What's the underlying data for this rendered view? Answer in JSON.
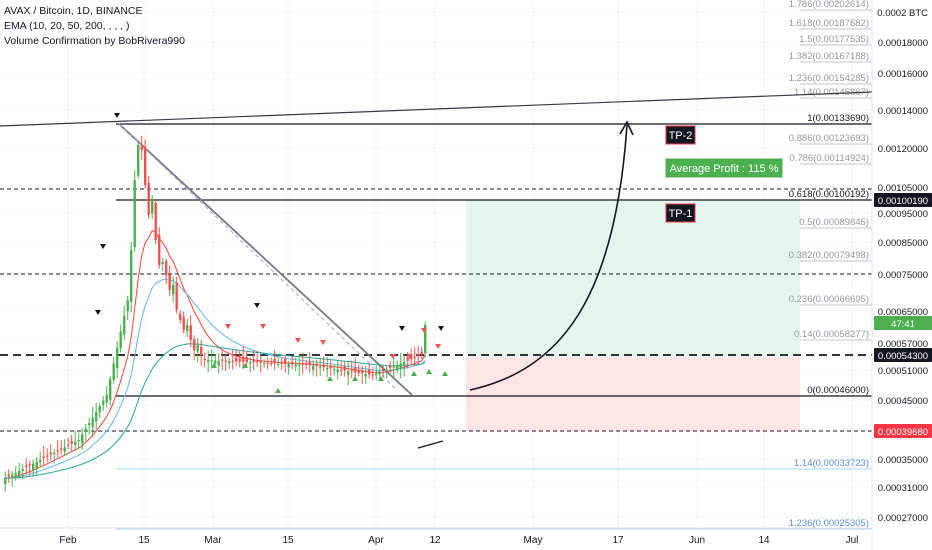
{
  "header": {
    "symbol_line": "AVAX / Bitcoin, 1D, BINANCE",
    "ema_line": "EMA (10, 20, 50, 200, , , , )",
    "indicator_line": "Volume Confirmation by BobRivera990"
  },
  "colors": {
    "bull": "#26a69a",
    "bull_candle": "#4caf50",
    "bear": "#ef5350",
    "ema10": "#f44336",
    "ema20": "#64b5f6",
    "ema50": "#26a69a",
    "profit_zone": "#e6f4ee",
    "loss_zone": "#fde5e5",
    "fib_line": "#b2b5be",
    "tag_blue": "#2962ff",
    "tag_red": "#f23645",
    "tag_green": "#4caf50",
    "tag_dark": "#131722"
  },
  "chart_data": {
    "type": "candlestick",
    "symbol": "AVAX / Bitcoin",
    "timeframe": "1D",
    "exchange": "BINANCE",
    "currency_label": "BTC",
    "y_axis_ticks": [
      0.0002,
      0.00018,
      0.00016,
      0.00014,
      0.0012,
      0.00105,
      0.00095,
      0.00085,
      0.00075,
      0.00065,
      0.00057,
      0.00051,
      0.00045,
      0.00039,
      0.00035,
      0.00031,
      0.00027
    ],
    "y_axis_labels": [
      "0.0002",
      "0.00018000",
      "0.00016000",
      "0.00014000",
      "0.00120000",
      "0.00105000",
      "0.00095000",
      "0.00085000",
      "0.00075000",
      "0.00065000",
      "0.00057000",
      "0.00051000",
      "0.00045000",
      "0.00039000",
      "0.00035000",
      "0.00031000",
      "0.00027000"
    ],
    "x_axis_labels": [
      "Feb",
      "15",
      "Mar",
      "15",
      "Apr",
      "12",
      "May",
      "17",
      "Jun",
      "14",
      "Jul"
    ],
    "fib_levels": [
      {
        "label": "1.786(0.00202614)",
        "value": 0.00202614
      },
      {
        "label": "1.618(0.00187682)",
        "value": 0.00187682
      },
      {
        "label": "1.5(0.00177535)",
        "value": 0.00177535
      },
      {
        "label": "1.382(0.00167188)",
        "value": 0.00167188
      },
      {
        "label": "1.236(0.00154285)",
        "value": 0.00154285
      },
      {
        "label": "1.14(0.00145867)",
        "value": 0.00145867
      },
      {
        "label": "1(0.00133690)",
        "value": 0.0013369
      },
      {
        "label": "0.886(0.00123693)",
        "value": 0.00123693
      },
      {
        "label": "0.786(0.00114924)",
        "value": 0.00114924
      },
      {
        "label": "0.618(0.00100192)",
        "value": 0.00100192
      },
      {
        "label": "0.5(0.00089845)",
        "value": 0.00089845
      },
      {
        "label": "0.382(0.00079498)",
        "value": 0.00079498
      },
      {
        "label": "0.236(0.00066695)",
        "value": 0.00066695
      },
      {
        "label": "0.14(0.00058277)",
        "value": 0.00058277
      },
      {
        "label": "0(0.00046000)",
        "value": 0.00046
      },
      {
        "label": "1.14(0.00033723)",
        "value": 0.00033723
      },
      {
        "label": "1.236(0.00025305)",
        "value": 0.00025305
      }
    ],
    "price_tags": [
      {
        "label": "0.00100190",
        "value": 0.0010019
      },
      {
        "label": "47:41",
        "value": 0.00061
      },
      {
        "label": "0.00054300",
        "value": 0.000543
      },
      {
        "label": "0.00039680",
        "value": 0.0003968
      }
    ],
    "annotations": {
      "tp2": "TP-2",
      "tp1": "TP-1",
      "average_profit": "Average Profit : 115 %"
    }
  }
}
